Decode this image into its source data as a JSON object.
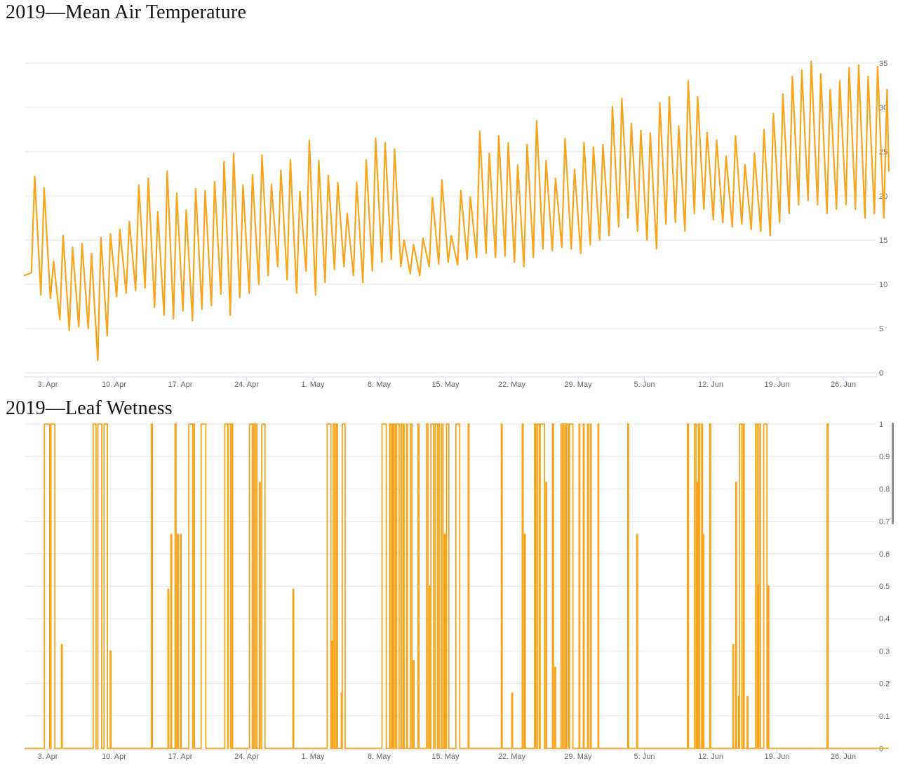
{
  "theme": {
    "series_color": "#F9A51B",
    "grid_color": "#E6E6E6",
    "axis_color": "#CCD6EB",
    "label_color": "#666666",
    "title_color": "#161616",
    "scrollbar_color": "#8E8E8E",
    "background": "#FFFFFF"
  },
  "scrollbar": {
    "visible": true
  },
  "chart_data": [
    {
      "type": "line",
      "title": "2019—Mean Air Temperature",
      "series_name": "Mean air temperature",
      "ylim": [
        0,
        35
      ],
      "y_ticks": [
        0,
        5,
        10,
        15,
        20,
        25,
        30,
        35
      ],
      "y_tick_labels": [
        "0",
        "5",
        "10",
        "15",
        "20",
        "25",
        "30",
        "35"
      ],
      "x_tick_labels": [
        "3. Apr",
        "10. Apr",
        "17. Apr",
        "24. Apr",
        "1. May",
        "8. May",
        "15. May",
        "22. May",
        "29. May",
        "5. Jun",
        "12. Jun",
        "19. Jun",
        "26. Jun"
      ],
      "x_tick_days": [
        2,
        9,
        16,
        23,
        30,
        37,
        44,
        51,
        58,
        65,
        72,
        79,
        86
      ],
      "x_range_days": [
        0,
        91
      ],
      "grid": true,
      "legend": "none",
      "lead_in": {
        "day": -0.45,
        "value": 11.0
      },
      "tail": {
        "day": 90.85,
        "value": 22.8
      },
      "daily_min": [
        11.3,
        8.8,
        8.4,
        6.0,
        4.8,
        5.2,
        5.0,
        1.4,
        4.2,
        8.6,
        9.0,
        9.3,
        9.6,
        7.4,
        6.5,
        6.1,
        7.0,
        5.9,
        7.2,
        7.6,
        8.9,
        6.5,
        8.5,
        9.0,
        10.0,
        11.0,
        12.0,
        10.5,
        9.0,
        11.5,
        8.8,
        10.2,
        11.7,
        12.0,
        11.0,
        10.2,
        11.5,
        12.5,
        12.8,
        12.0,
        11.2,
        11.0,
        12.0,
        12.3,
        12.5,
        12.2,
        12.8,
        13.0,
        13.5,
        13.0,
        13.2,
        12.5,
        12.0,
        13.0,
        14.0,
        13.8,
        14.2,
        14.0,
        13.5,
        14.5,
        15.0,
        15.5,
        16.5,
        17.5,
        16.0,
        15.0,
        14.0,
        16.8,
        17.0,
        16.0,
        18.0,
        18.5,
        17.3,
        17.0,
        16.5,
        16.8,
        16.2,
        16.0,
        15.5,
        17.0,
        18.0,
        19.0,
        19.5,
        19.0,
        18.0,
        18.5,
        19.0,
        18.5,
        17.5,
        18.0,
        17.5
      ],
      "daily_max": [
        22.2,
        20.9,
        12.6,
        15.5,
        14.2,
        14.6,
        13.5,
        15.3,
        15.7,
        16.2,
        17.1,
        21.2,
        22.0,
        18.2,
        22.8,
        20.3,
        18.4,
        20.8,
        20.6,
        21.6,
        23.9,
        24.8,
        21.2,
        22.4,
        24.6,
        21.3,
        22.9,
        24.1,
        20.5,
        26.3,
        24.0,
        22.3,
        21.5,
        18.0,
        21.5,
        24.1,
        26.5,
        26.0,
        25.3,
        15.0,
        14.5,
        15.2,
        19.8,
        21.8,
        15.5,
        20.6,
        19.9,
        27.3,
        24.8,
        26.8,
        26.0,
        23.5,
        25.8,
        28.5,
        24.0,
        22.0,
        26.5,
        23.0,
        26.0,
        25.5,
        25.8,
        30.1,
        31.0,
        28.2,
        27.4,
        27.1,
        30.5,
        31.2,
        27.9,
        33.0,
        31.2,
        27.2,
        26.3,
        24.5,
        26.8,
        23.5,
        24.8,
        27.5,
        29.3,
        31.5,
        33.5,
        34.2,
        35.2,
        33.8,
        32.0,
        33.0,
        34.5,
        34.8,
        33.5,
        34.6,
        32.0
      ]
    },
    {
      "type": "step-line",
      "title": "2019—Leaf Wetness",
      "series_name": "Leaf wetness",
      "ylim": [
        0,
        1
      ],
      "y_ticks": [
        0,
        0.1,
        0.2,
        0.3,
        0.4,
        0.5,
        0.6,
        0.7,
        0.8,
        0.9,
        1
      ],
      "y_tick_labels": [
        "0",
        "0.1",
        "0.2",
        "0.3",
        "0.4",
        "0.5",
        "0.6",
        "0.7",
        "0.8",
        "0.9",
        "1"
      ],
      "x_tick_labels": [
        "3. Apr",
        "10. Apr",
        "17. Apr",
        "24. Apr",
        "1. May",
        "8. May",
        "15. May",
        "22. May",
        "29. May",
        "5. Jun",
        "12. Jun",
        "19. Jun",
        "26. Jun"
      ],
      "x_tick_days": [
        2,
        9,
        16,
        23,
        30,
        37,
        44,
        51,
        58,
        65,
        72,
        79,
        86
      ],
      "x_range_days": [
        0,
        91
      ],
      "grid": true,
      "legend": "none",
      "baseline": 0,
      "episodes": [
        [
          1.65,
          2.2,
          1
        ],
        [
          2.35,
          2.75,
          1
        ],
        [
          3.45,
          3.45,
          0.32
        ],
        [
          6.8,
          7.1,
          1
        ],
        [
          7.3,
          7.7,
          1
        ],
        [
          7.95,
          8.3,
          1
        ],
        [
          8.6,
          8.6,
          0.3
        ],
        [
          12.95,
          13.05,
          1
        ],
        [
          14.7,
          14.7,
          0.49
        ],
        [
          15.0,
          15.0,
          0.66
        ],
        [
          15.45,
          15.55,
          1
        ],
        [
          15.7,
          15.7,
          0.66
        ],
        [
          16.0,
          16.0,
          0.66
        ],
        [
          16.9,
          17.3,
          1
        ],
        [
          17.35,
          17.5,
          1
        ],
        [
          18.2,
          18.7,
          1
        ],
        [
          20.7,
          21.0,
          1
        ],
        [
          21.05,
          21.3,
          1
        ],
        [
          21.45,
          21.45,
          1
        ],
        [
          23.3,
          23.6,
          1
        ],
        [
          23.75,
          23.75,
          1
        ],
        [
          24.0,
          24.0,
          1
        ],
        [
          24.35,
          24.35,
          0.82
        ],
        [
          24.6,
          24.95,
          1
        ],
        [
          27.9,
          27.9,
          0.49
        ],
        [
          31.5,
          31.9,
          1
        ],
        [
          32.0,
          32.0,
          0.33
        ],
        [
          32.15,
          32.3,
          1
        ],
        [
          32.45,
          32.6,
          1
        ],
        [
          33.0,
          33.0,
          0.17
        ],
        [
          33.1,
          33.4,
          1
        ],
        [
          37.3,
          37.75,
          1
        ],
        [
          38.1,
          38.25,
          1
        ],
        [
          38.4,
          38.4,
          1
        ],
        [
          38.55,
          38.7,
          1
        ],
        [
          38.85,
          39.1,
          1
        ],
        [
          39.3,
          39.3,
          1
        ],
        [
          39.55,
          39.55,
          1
        ],
        [
          39.9,
          39.9,
          1
        ],
        [
          40.3,
          40.45,
          1
        ],
        [
          40.6,
          40.6,
          0.27
        ],
        [
          41.1,
          41.2,
          1
        ],
        [
          42.0,
          42.15,
          1
        ],
        [
          42.3,
          42.3,
          0.5
        ],
        [
          42.45,
          42.75,
          1
        ],
        [
          42.9,
          43.15,
          1
        ],
        [
          43.3,
          43.3,
          1
        ],
        [
          43.6,
          43.75,
          1
        ],
        [
          43.9,
          43.9,
          0.66
        ],
        [
          44.1,
          44.35,
          1
        ],
        [
          45.1,
          45.5,
          1
        ],
        [
          46.4,
          46.4,
          1
        ],
        [
          49.9,
          49.9,
          1
        ],
        [
          51.0,
          51.0,
          0.17
        ],
        [
          52.1,
          52.2,
          1
        ],
        [
          52.35,
          52.35,
          0.66
        ],
        [
          53.4,
          53.55,
          1
        ],
        [
          53.7,
          53.9,
          1
        ],
        [
          54.0,
          54.45,
          1
        ],
        [
          54.6,
          54.6,
          0.82
        ],
        [
          55.3,
          55.4,
          1
        ],
        [
          55.55,
          55.55,
          0.25
        ],
        [
          56.2,
          56.35,
          1
        ],
        [
          56.5,
          56.65,
          1
        ],
        [
          56.8,
          57.0,
          1
        ],
        [
          57.1,
          57.45,
          1
        ],
        [
          58.1,
          58.1,
          1
        ],
        [
          58.55,
          58.55,
          1
        ],
        [
          59.0,
          59.05,
          1
        ],
        [
          59.3,
          59.3,
          1
        ],
        [
          60.1,
          60.15,
          1
        ],
        [
          63.25,
          63.3,
          1
        ],
        [
          64.2,
          64.2,
          0.66
        ],
        [
          69.55,
          69.65,
          1
        ],
        [
          70.3,
          70.45,
          1
        ],
        [
          70.55,
          70.55,
          0.82
        ],
        [
          70.7,
          70.85,
          1
        ],
        [
          71.05,
          71.05,
          1
        ],
        [
          71.2,
          71.2,
          0.66
        ],
        [
          71.9,
          72.0,
          1
        ],
        [
          74.35,
          74.35,
          0.32
        ],
        [
          74.65,
          74.65,
          0.82
        ],
        [
          74.95,
          74.95,
          0.16
        ],
        [
          75.05,
          75.3,
          1
        ],
        [
          75.45,
          75.5,
          1
        ],
        [
          75.85,
          75.85,
          0.16
        ],
        [
          76.75,
          76.9,
          1
        ],
        [
          77.0,
          77.0,
          0.5
        ],
        [
          77.1,
          77.25,
          1
        ],
        [
          77.6,
          77.95,
          1
        ],
        [
          78.05,
          78.05,
          0.5
        ],
        [
          84.3,
          84.4,
          1
        ]
      ]
    }
  ]
}
